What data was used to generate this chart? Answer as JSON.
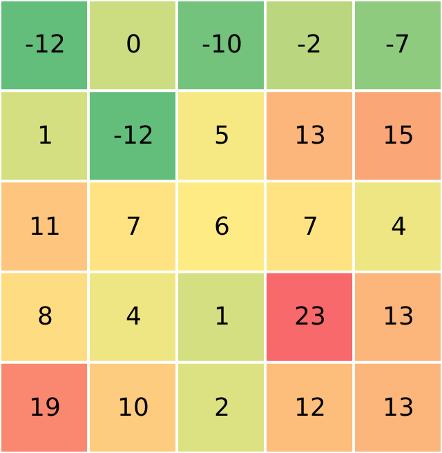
{
  "chart_data": {
    "type": "heatmap",
    "categories": [
      null,
      null,
      null,
      null,
      null
    ],
    "y_categories": [
      null,
      null,
      null,
      null,
      null
    ],
    "cells": [
      [
        -12,
        0,
        -10,
        -2,
        -7
      ],
      [
        1,
        -12,
        5,
        13,
        15
      ],
      [
        11,
        7,
        6,
        7,
        4
      ],
      [
        8,
        4,
        1,
        23,
        13
      ],
      [
        19,
        10,
        2,
        12,
        13
      ]
    ],
    "data_labels": true
  }
}
